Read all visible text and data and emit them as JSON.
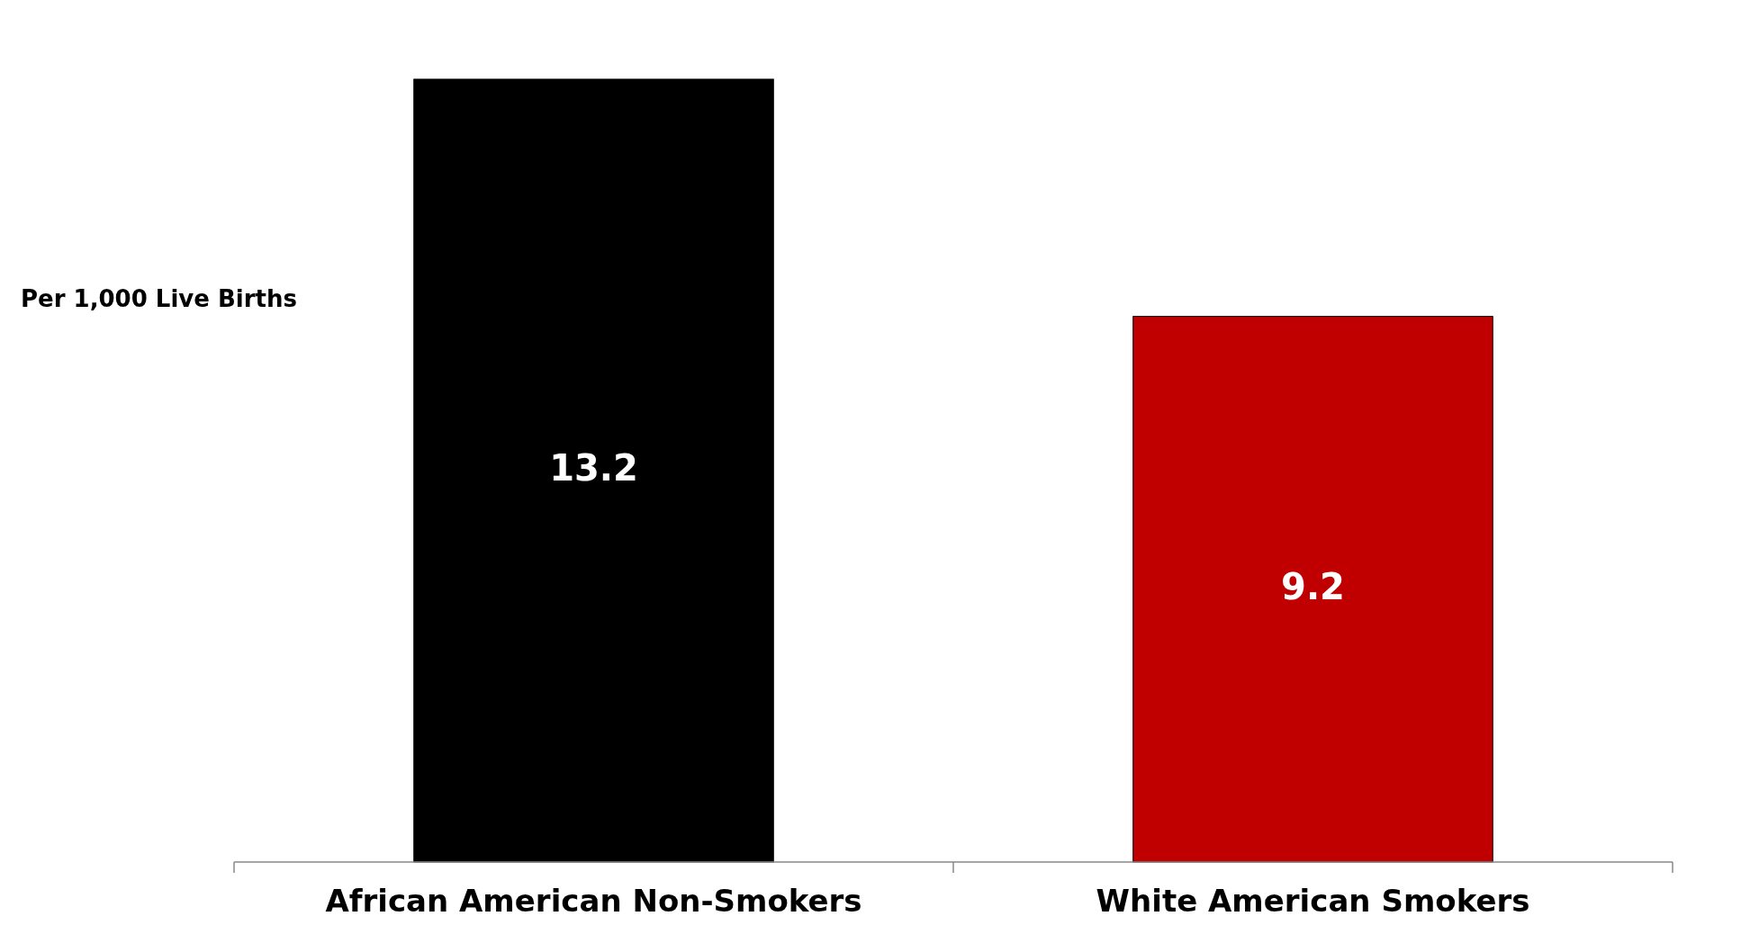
{
  "chart_data": {
    "type": "bar",
    "ylabel": "Per 1,000 Live Births",
    "categories": [
      "African American Non-Smokers",
      "White American Smokers"
    ],
    "values": [
      13.2,
      9.2
    ],
    "colors": [
      "#000000",
      "#c00000"
    ],
    "data_labels": true
  }
}
